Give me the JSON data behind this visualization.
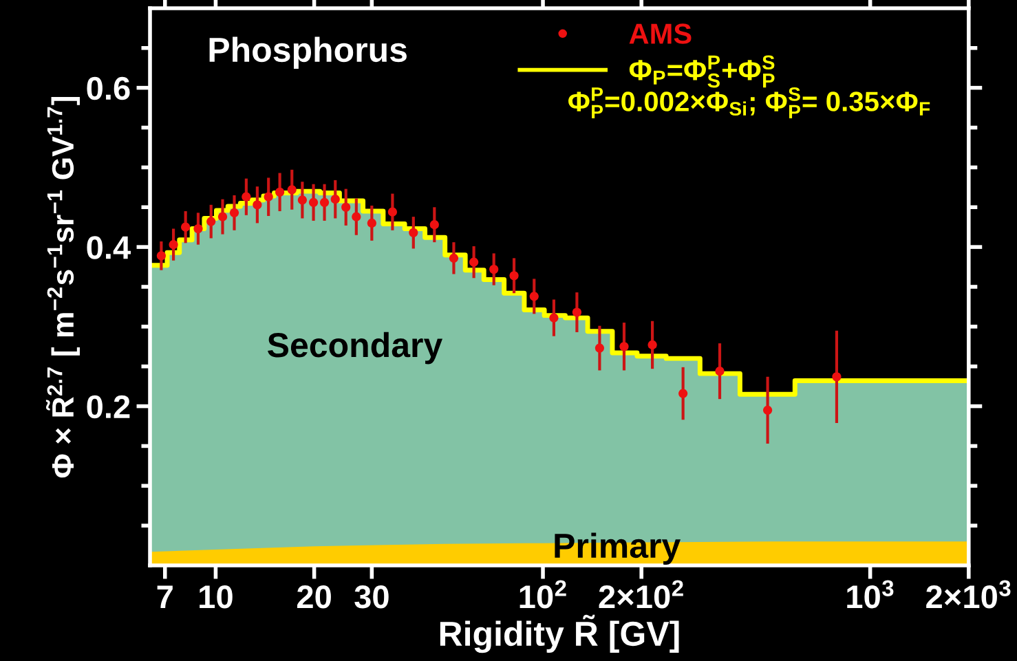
{
  "chart_data": {
    "type": "scatter",
    "xlabel": "Rigidity R̃ [GV]",
    "ylabel": "Φ × R̃$^{2.7}$ [ m$^{−2}$s$^{−1}$sr$^{−1}$ GV$^{1.7}$]",
    "log": "x",
    "xlim": [
      6.3,
      2000
    ],
    "xticks": [
      7,
      10,
      20,
      30,
      {
        "value": 100,
        "label": "10$^{2}$"
      },
      {
        "value": 200,
        "label": "2×10$^{2}$"
      },
      {
        "value": 1000,
        "label": "10$^{3}$"
      },
      {
        "value": 2000,
        "label": "2×10$^{3}$"
      }
    ],
    "ylim": [
      0,
      0.7
    ],
    "yticks": [
      {
        "value": 0.05,
        "label": null
      },
      {
        "value": 0.1,
        "label": null
      },
      {
        "value": 0.15,
        "label": null
      },
      0.2,
      {
        "value": 0.25,
        "label": null
      },
      {
        "value": 0.3,
        "label": null
      },
      {
        "value": 0.35,
        "label": null
      },
      0.4,
      {
        "value": 0.45,
        "label": null
      },
      {
        "value": 0.5,
        "label": null
      },
      {
        "value": 0.55,
        "label": null
      },
      0.6,
      {
        "value": 0.65,
        "label": null
      }
    ],
    "grid": false,
    "legend": "top right",
    "series": [
      {
        "type": "area",
        "color": "#82c3a5",
        "x": [
          6.3,
          7.11,
          7.11,
          7.75,
          7.75,
          8.47,
          8.47,
          9.23,
          9.23,
          10.05,
          10.05,
          10.9,
          10.9,
          11.9,
          11.9,
          12.9,
          12.9,
          14.0,
          14.0,
          15.1,
          15.1,
          17.7,
          17.7,
          20.8,
          20.8,
          23.9,
          23.9,
          28.2,
          28.2,
          32.5,
          32.5,
          37.8,
          37.8,
          43.6,
          43.6,
          50.2,
          50.2,
          57.9,
          57.9,
          66.0,
          66.0,
          76.1,
          76.1,
          87.7,
          87.7,
          101,
          101,
          117,
          117,
          137,
          137,
          163,
          163,
          194,
          194,
          238,
          238,
          302,
          302,
          400,
          400,
          589,
          589,
          2000
        ],
        "values": [
          0.377,
          0.377,
          0.393,
          0.393,
          0.409,
          0.409,
          0.423,
          0.423,
          0.436,
          0.436,
          0.446,
          0.446,
          0.451,
          0.451,
          0.455,
          0.455,
          0.459,
          0.459,
          0.464,
          0.464,
          0.468,
          0.468,
          0.47,
          0.47,
          0.468,
          0.468,
          0.458,
          0.458,
          0.445,
          0.445,
          0.429,
          0.429,
          0.423,
          0.423,
          0.412,
          0.412,
          0.39,
          0.39,
          0.371,
          0.371,
          0.359,
          0.359,
          0.342,
          0.342,
          0.321,
          0.321,
          0.314,
          0.314,
          0.311,
          0.311,
          0.294,
          0.294,
          0.267,
          0.267,
          0.263,
          0.263,
          0.26,
          0.26,
          0.241,
          0.241,
          0.215,
          0.215,
          0.232,
          0.232
        ]
      },
      {
        "type": "area",
        "color": "#ffcc00",
        "x": [
          6.3,
          10,
          20,
          50,
          100,
          200,
          500,
          1000,
          2000
        ],
        "values": [
          0.017,
          0.02,
          0.024,
          0.027,
          0.028,
          0.029,
          0.03,
          0.03,
          0.03
        ]
      },
      {
        "type": "step",
        "name": "Φ$_{P}$=Φ$^{P}$$_{S}$+Φ$^{S}$$_{P}$",
        "color": "#ffff00",
        "x": [
          6.3,
          7.11,
          7.75,
          8.47,
          9.23,
          10.05,
          10.9,
          11.9,
          12.9,
          14.0,
          15.1,
          17.7,
          20.8,
          23.9,
          28.2,
          32.5,
          37.8,
          43.6,
          50.2,
          57.9,
          66.0,
          76.1,
          87.7,
          101,
          117,
          137,
          163,
          194,
          238,
          302,
          400,
          589,
          2000
        ],
        "values": [
          0.377,
          0.393,
          0.409,
          0.423,
          0.436,
          0.446,
          0.451,
          0.455,
          0.459,
          0.464,
          0.468,
          0.47,
          0.468,
          0.458,
          0.445,
          0.429,
          0.423,
          0.412,
          0.39,
          0.371,
          0.359,
          0.342,
          0.321,
          0.314,
          0.311,
          0.294,
          0.267,
          0.263,
          0.26,
          0.241,
          0.215,
          0.232,
          0.232
        ]
      },
      {
        "name": "AMS",
        "color": "#ee1111",
        "marker": "circle",
        "x": [
          6.82,
          7.43,
          8.09,
          8.84,
          9.68,
          10.5,
          11.4,
          12.4,
          13.4,
          14.5,
          15.7,
          17.1,
          18.4,
          19.9,
          21.5,
          23.2,
          25.0,
          26.9,
          30.0,
          34.7,
          40.2,
          46.6,
          53.4,
          61.5,
          70.8,
          81.6,
          94.0,
          108,
          127,
          149,
          177,
          216,
          268,
          347,
          486,
          790
        ],
        "values": [
          0.389,
          0.403,
          0.425,
          0.423,
          0.432,
          0.438,
          0.443,
          0.463,
          0.453,
          0.463,
          0.469,
          0.472,
          0.459,
          0.456,
          0.456,
          0.46,
          0.45,
          0.438,
          0.43,
          0.444,
          0.418,
          0.428,
          0.386,
          0.381,
          0.372,
          0.364,
          0.338,
          0.311,
          0.318,
          0.273,
          0.275,
          0.277,
          0.216,
          0.244,
          0.195,
          0.237
        ],
        "errors": [
          0.018,
          0.02,
          0.02,
          0.02,
          0.021,
          0.022,
          0.022,
          0.023,
          0.023,
          0.024,
          0.024,
          0.025,
          0.023,
          0.023,
          0.023,
          0.024,
          0.023,
          0.023,
          0.022,
          0.023,
          0.02,
          0.022,
          0.02,
          0.02,
          0.02,
          0.022,
          0.022,
          0.023,
          0.025,
          0.028,
          0.03,
          0.03,
          0.033,
          0.035,
          0.042,
          0.058
        ]
      }
    ],
    "annotations": [
      "Phosphorus",
      "Φ$^{P}$$_{P}$=0.002×Φ$_{Si}$; Φ$^{S}$$_{P}$= 0.35×Φ$_{F}$",
      "Secondary",
      "Primary"
    ]
  }
}
